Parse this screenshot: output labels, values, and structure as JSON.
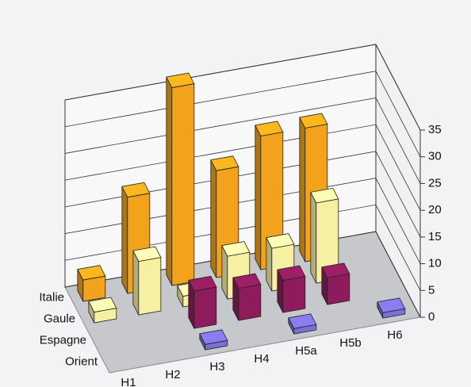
{
  "chart_data": {
    "type": "bar3d",
    "categories": [
      "H1",
      "H2",
      "H3",
      "H4",
      "H5a",
      "H5b",
      "H6"
    ],
    "series": [
      {
        "name": "Italie",
        "color": "#f2a31b",
        "values": [
          4,
          18,
          37,
          20,
          25,
          25,
          null
        ]
      },
      {
        "name": "Gaule",
        "color": "#f6f0a2",
        "values": [
          2,
          10,
          2,
          8,
          8,
          15,
          null
        ]
      },
      {
        "name": "Espagne",
        "color": "#8e1c5c",
        "values": [
          null,
          null,
          7,
          6,
          6,
          5,
          null
        ]
      },
      {
        "name": "Orient",
        "color": "#7a70d8",
        "values": [
          null,
          null,
          1,
          null,
          1,
          null,
          1
        ]
      }
    ],
    "ylim": [
      0,
      35
    ],
    "yticks": [
      0,
      5,
      10,
      15,
      20,
      25,
      30,
      35
    ],
    "grid": true
  }
}
